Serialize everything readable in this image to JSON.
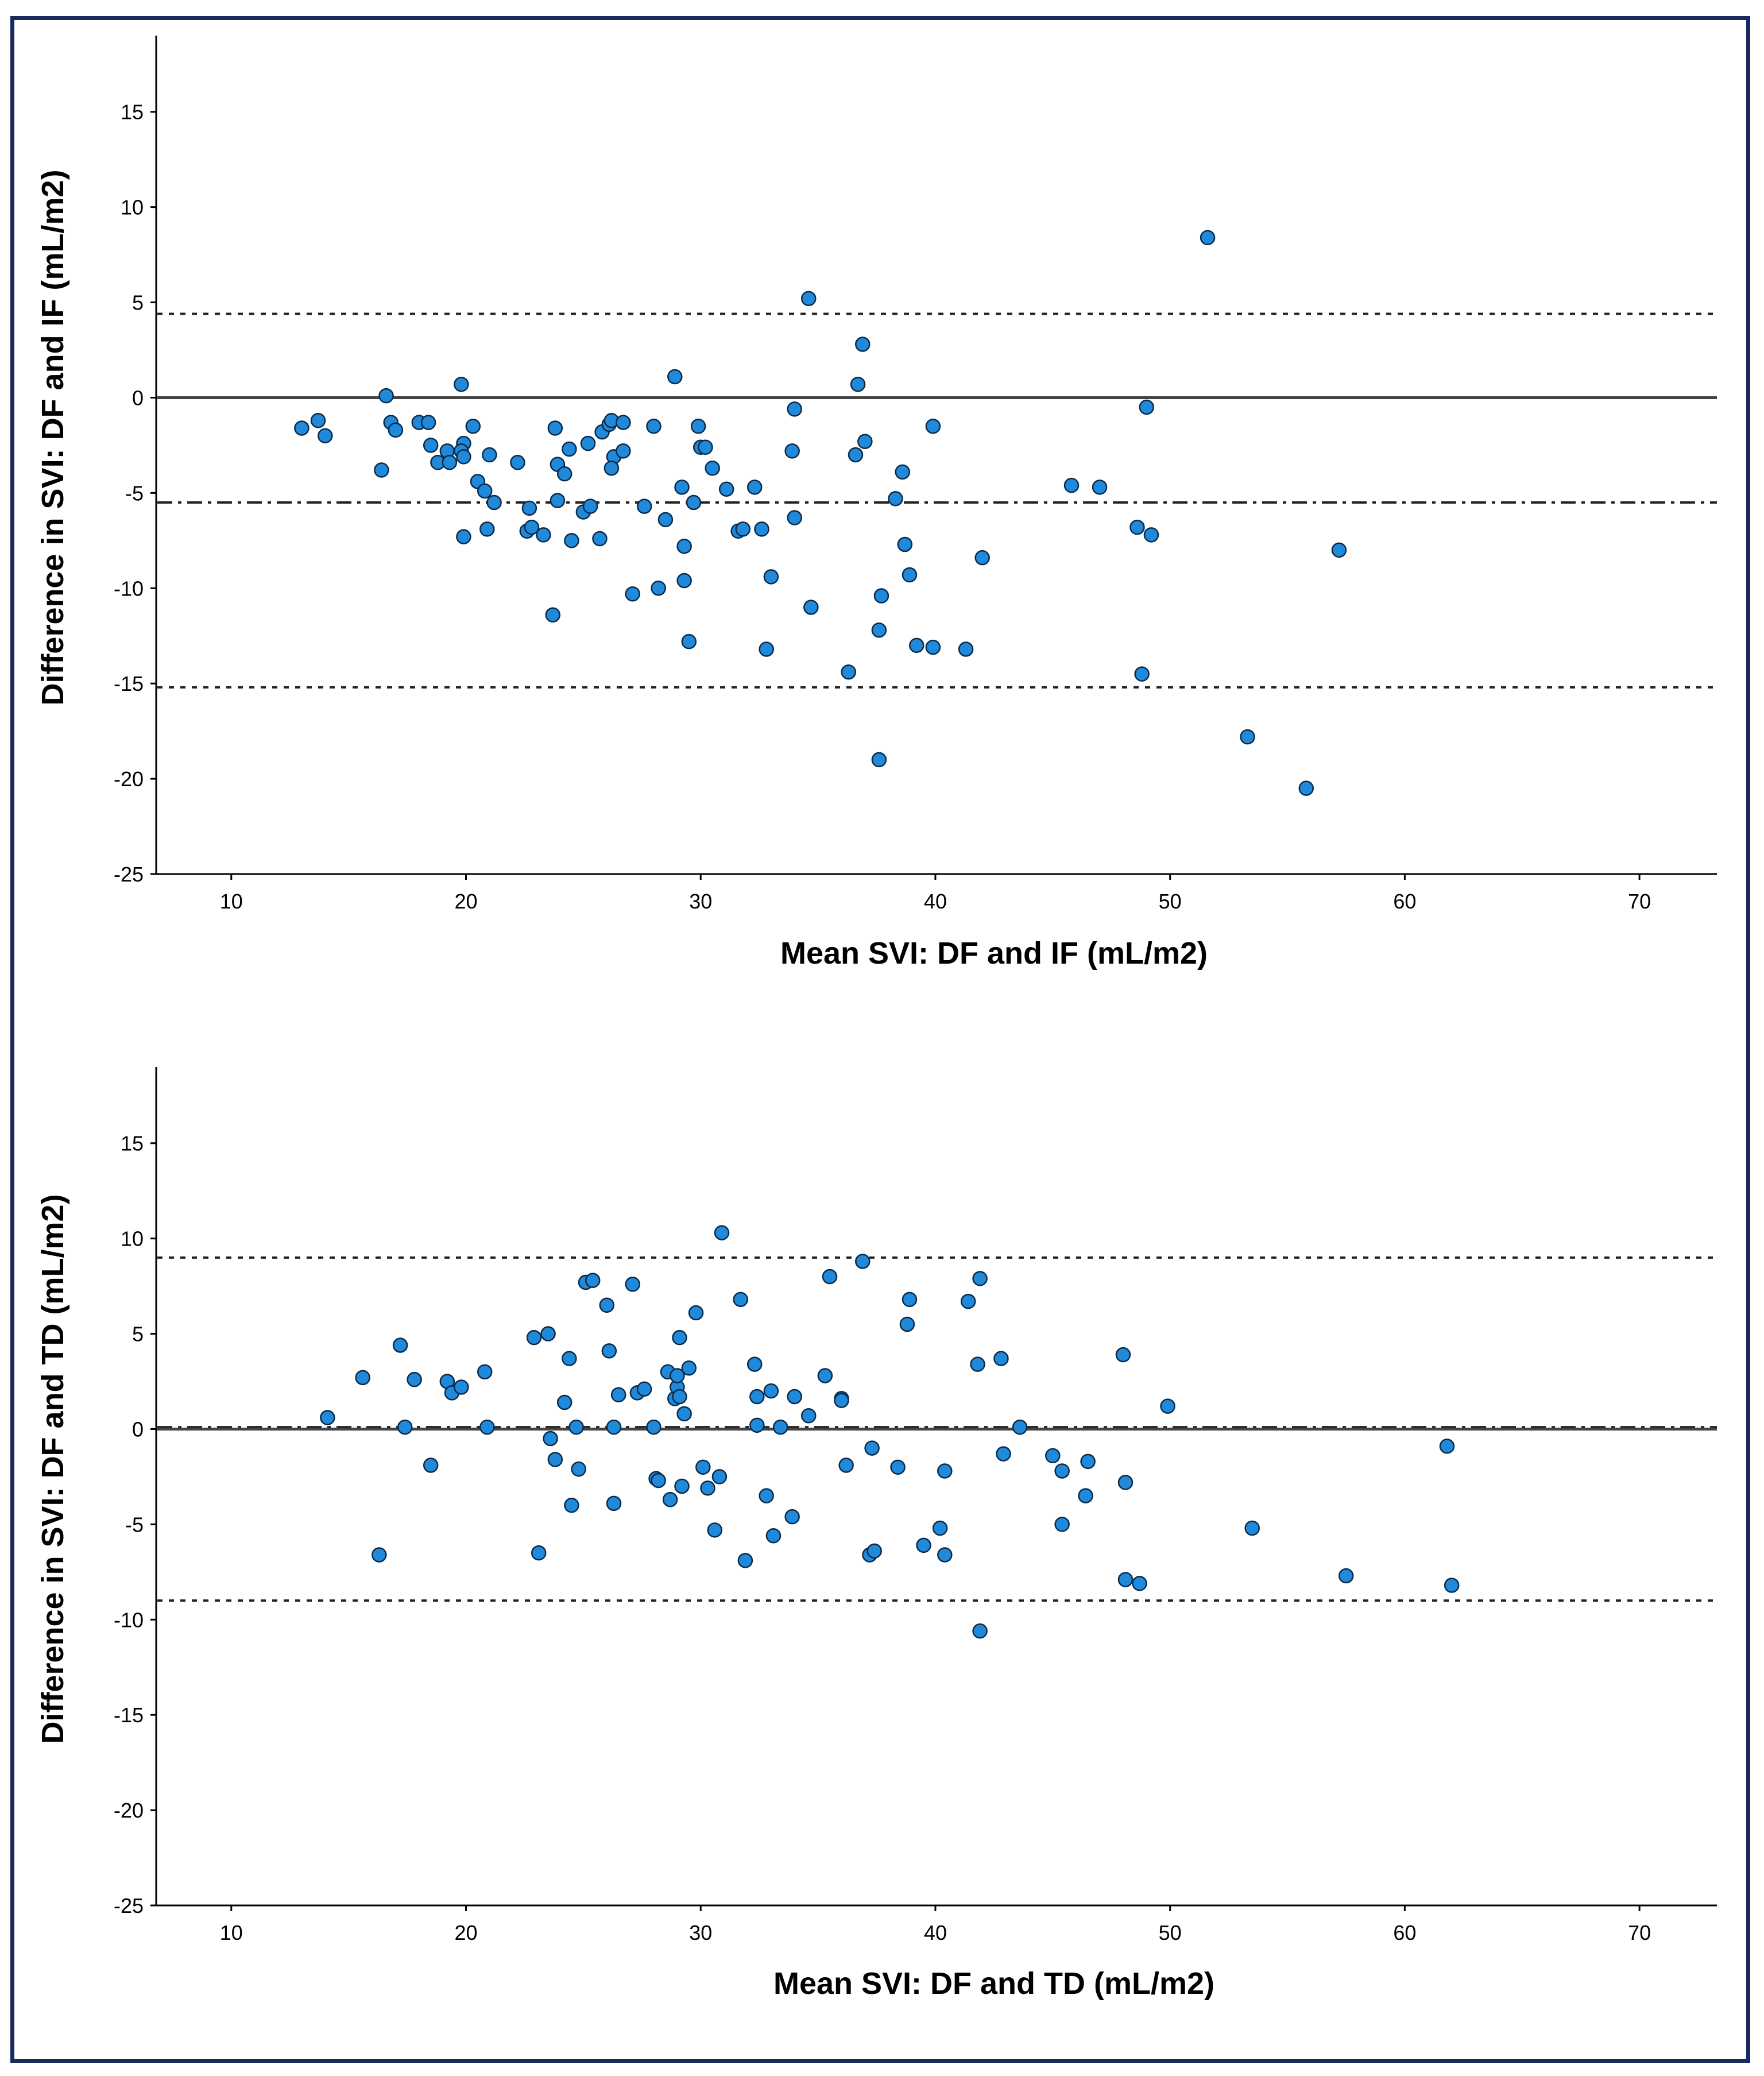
{
  "colors": {
    "frame": "#1b2a5e",
    "point_fill": "#2189d9",
    "point_stroke": "#0a2a4a",
    "axis": "#000000",
    "zero_line": "#444444"
  },
  "chart_data": [
    {
      "type": "scatter",
      "title": "",
      "xlabel": "Mean SVI: DF and IF (mL/m2)",
      "ylabel": "Difference in SVI: DF and IF (mL/m2)",
      "xlim": [
        6.8,
        73.3
      ],
      "ylim": [
        -25,
        19
      ],
      "xticks": [
        "10",
        "20",
        "30",
        "40",
        "50",
        "60",
        "70"
      ],
      "yticks": [
        "15",
        "10",
        "5",
        "0",
        "-5",
        "-10",
        "-15",
        "-20",
        "-25"
      ],
      "reference_lines": {
        "zero": 0,
        "mean_bias": -5.5,
        "upper_loa": 4.4,
        "lower_loa": -15.2
      },
      "x": [
        13.0,
        13.7,
        14.0,
        16.4,
        16.6,
        16.8,
        17.0,
        18.0,
        18.5,
        18.4,
        18.8,
        19.2,
        19.3,
        19.9,
        19.8,
        19.9,
        19.8,
        19.9,
        20.3,
        20.5,
        20.8,
        21.0,
        21.2,
        20.9,
        22.2,
        22.6,
        22.7,
        22.8,
        23.3,
        23.7,
        23.8,
        23.9,
        23.9,
        24.2,
        24.4,
        24.5,
        25.0,
        25.2,
        25.3,
        25.7,
        25.8,
        26.1,
        26.2,
        26.3,
        26.2,
        26.7,
        26.7,
        27.1,
        27.6,
        28.0,
        28.2,
        28.5,
        28.9,
        29.2,
        29.3,
        29.3,
        29.5,
        29.7,
        29.9,
        30.0,
        30.2,
        30.5,
        31.1,
        31.6,
        31.8,
        32.3,
        32.6,
        32.8,
        33.0,
        33.9,
        34.0,
        34.0,
        34.6,
        34.7,
        36.3,
        36.6,
        36.7,
        37.0,
        36.9,
        37.6,
        37.6,
        37.7,
        38.3,
        38.6,
        38.7,
        38.9,
        39.2,
        39.9,
        39.9,
        41.3,
        42.0,
        45.8,
        47.0,
        48.6,
        48.8,
        49.0,
        49.2,
        51.6,
        53.3,
        55.8,
        57.2
      ],
      "y": [
        -1.6,
        -1.2,
        -2.0,
        -3.8,
        0.1,
        -1.3,
        -1.7,
        -1.3,
        -2.5,
        -1.3,
        -3.4,
        -2.8,
        -3.4,
        -2.4,
        -2.8,
        -3.1,
        0.7,
        -7.3,
        -1.5,
        -4.4,
        -4.9,
        -3.0,
        -5.5,
        -6.9,
        -3.4,
        -7.0,
        -5.8,
        -6.8,
        -7.2,
        -11.4,
        -1.6,
        -3.5,
        -5.4,
        -4.0,
        -2.7,
        -7.5,
        -6.0,
        -2.4,
        -5.7,
        -7.4,
        -1.8,
        -1.4,
        -1.2,
        -3.1,
        -3.7,
        -1.3,
        -2.8,
        -10.3,
        -5.7,
        -1.5,
        -10.0,
        -6.4,
        1.1,
        -4.7,
        -7.8,
        -9.6,
        -12.8,
        -5.5,
        -1.5,
        -2.6,
        -2.6,
        -3.7,
        -4.8,
        -7.0,
        -6.9,
        -4.7,
        -6.9,
        -13.2,
        -9.4,
        -2.8,
        -0.6,
        -6.3,
        5.2,
        -11.0,
        -14.4,
        -3.0,
        0.7,
        -2.3,
        2.8,
        -12.2,
        -19.0,
        -10.4,
        -5.3,
        -3.9,
        -7.7,
        -9.3,
        -13.0,
        -13.1,
        -1.5,
        -13.2,
        -8.4,
        -4.6,
        -4.7,
        -6.8,
        -14.5,
        -0.5,
        -7.2,
        8.4,
        -17.8,
        -20.5,
        -8.0
      ]
    },
    {
      "type": "scatter",
      "title": "",
      "xlabel": "Mean SVI: DF and TD (mL/m2)",
      "ylabel": "Difference in SVI: DF and TD (mL/m2)",
      "xlim": [
        6.8,
        73.3
      ],
      "ylim": [
        -25,
        19
      ],
      "xticks": [
        "10",
        "20",
        "30",
        "40",
        "50",
        "60",
        "70"
      ],
      "yticks": [
        "15",
        "10",
        "5",
        "0",
        "-5",
        "-10",
        "-15",
        "-20",
        "-25"
      ],
      "reference_lines": {
        "zero": 0,
        "mean_bias": 0.1,
        "upper_loa": 9.0,
        "lower_loa": -9.0
      },
      "x": [
        14.1,
        15.6,
        16.3,
        17.2,
        17.4,
        17.8,
        18.5,
        19.2,
        19.4,
        19.8,
        20.8,
        20.9,
        22.9,
        23.1,
        23.5,
        23.6,
        23.8,
        24.2,
        24.4,
        24.5,
        24.7,
        24.8,
        25.1,
        25.4,
        26.0,
        26.1,
        26.3,
        26.3,
        26.5,
        27.1,
        27.3,
        27.6,
        28.0,
        28.1,
        28.2,
        28.6,
        28.7,
        28.9,
        29.0,
        29.0,
        29.1,
        29.1,
        29.2,
        29.3,
        29.5,
        29.8,
        30.1,
        30.3,
        30.6,
        30.8,
        30.9,
        31.7,
        31.9,
        32.3,
        32.4,
        32.4,
        32.8,
        33.0,
        33.1,
        33.4,
        33.9,
        34.0,
        34.6,
        35.3,
        35.5,
        36.0,
        36.0,
        36.2,
        36.9,
        37.2,
        37.3,
        37.4,
        38.4,
        38.8,
        38.9,
        39.5,
        40.2,
        40.4,
        40.4,
        41.4,
        41.8,
        41.9,
        41.9,
        42.8,
        42.9,
        43.6,
        45.0,
        45.4,
        45.4,
        46.4,
        46.5,
        48.0,
        48.1,
        48.1,
        48.7,
        49.9,
        53.5,
        57.5,
        61.8,
        62.0
      ],
      "y": [
        0.6,
        2.7,
        -6.6,
        4.4,
        0.1,
        2.6,
        -1.9,
        2.5,
        1.9,
        2.2,
        3.0,
        0.1,
        4.8,
        -6.5,
        5.0,
        -0.5,
        -1.6,
        1.4,
        3.7,
        -4.0,
        0.1,
        -2.1,
        7.7,
        7.8,
        6.5,
        4.1,
        -3.9,
        0.1,
        1.8,
        7.6,
        1.9,
        2.1,
        0.1,
        -2.6,
        -2.7,
        3.0,
        -3.7,
        1.6,
        2.2,
        2.8,
        1.7,
        4.8,
        -3.0,
        0.8,
        3.2,
        6.1,
        -2.0,
        -3.1,
        -5.3,
        -2.5,
        10.3,
        6.8,
        -6.9,
        3.4,
        0.2,
        1.7,
        -3.5,
        2.0,
        -5.6,
        0.1,
        -4.6,
        1.7,
        0.7,
        2.8,
        8.0,
        1.6,
        1.5,
        -1.9,
        8.8,
        -6.6,
        -1.0,
        -6.4,
        -2.0,
        5.5,
        6.8,
        -6.1,
        -5.2,
        -2.2,
        -6.6,
        6.7,
        3.4,
        -10.6,
        7.9,
        3.7,
        -1.3,
        0.1,
        -1.4,
        -2.2,
        -5.0,
        -3.5,
        -1.7,
        3.9,
        -2.8,
        -7.9,
        -8.1,
        1.2,
        -5.2,
        -7.7,
        -0.9,
        -8.2
      ]
    }
  ]
}
